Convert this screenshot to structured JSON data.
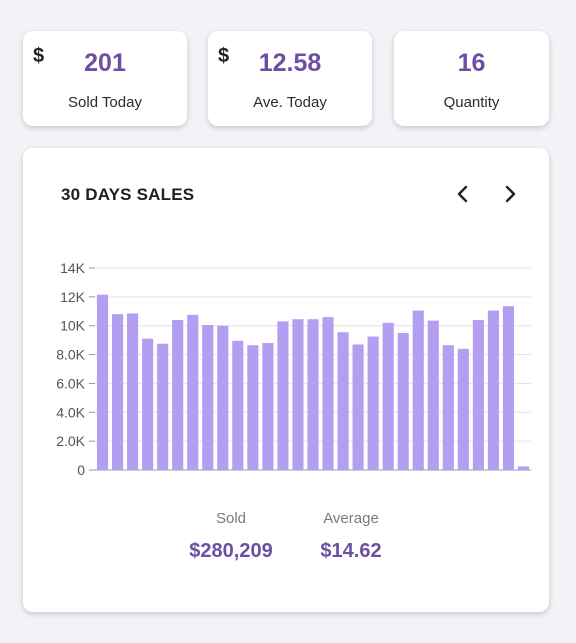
{
  "stats": [
    {
      "currency": "$",
      "value": "201",
      "label": "Sold Today"
    },
    {
      "currency": "$",
      "value": "12.58",
      "label": "Ave. Today"
    },
    {
      "currency": "",
      "value": "16",
      "label": "Quantity"
    }
  ],
  "chart_card": {
    "title": "30 DAYS SALES",
    "prev_icon": "chevron-left-icon",
    "next_icon": "chevron-right-icon",
    "summary": {
      "sold_label": "Sold",
      "sold_value": "$280,209",
      "average_label": "Average",
      "average_value": "$14.62"
    }
  },
  "colors": {
    "bar": "#b39ef2",
    "accent": "#6c4fa3",
    "grid": "#e3e3e3",
    "background": "#f1f3f6"
  },
  "chart_data": {
    "type": "bar",
    "title": "30 DAYS SALES",
    "xlabel": "",
    "ylabel": "",
    "ylim": [
      0,
      14000
    ],
    "yticks": [
      0,
      2000,
      4000,
      6000,
      8000,
      10000,
      12000,
      14000
    ],
    "ytick_labels": [
      "0",
      "2.0K",
      "4.0K",
      "6.0K",
      "8.0K",
      "10K",
      "12K",
      "14K"
    ],
    "grid": true,
    "values": [
      12150,
      10800,
      10850,
      9100,
      8750,
      10400,
      10750,
      10050,
      10000,
      8950,
      8650,
      8800,
      10300,
      10450,
      10450,
      10600,
      9550,
      8700,
      9250,
      10200,
      9500,
      11050,
      10350,
      8650,
      8400,
      10400,
      11050,
      11350,
      250
    ]
  }
}
